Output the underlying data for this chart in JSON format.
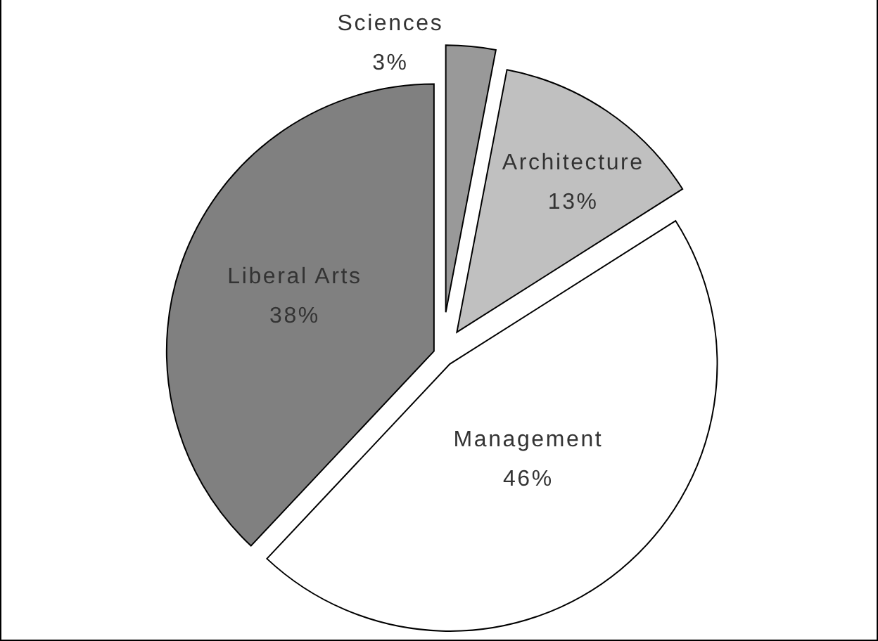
{
  "chart_data": {
    "type": "pie",
    "categories": [
      "Sciences",
      "Architecture",
      "Management",
      "Liberal Arts"
    ],
    "values": [
      3,
      13,
      46,
      38
    ],
    "colors": [
      "#999999",
      "#c0c0c0",
      "#ffffff",
      "#808080"
    ],
    "value_labels": [
      "3%",
      "13%",
      "46%",
      "38%"
    ]
  }
}
